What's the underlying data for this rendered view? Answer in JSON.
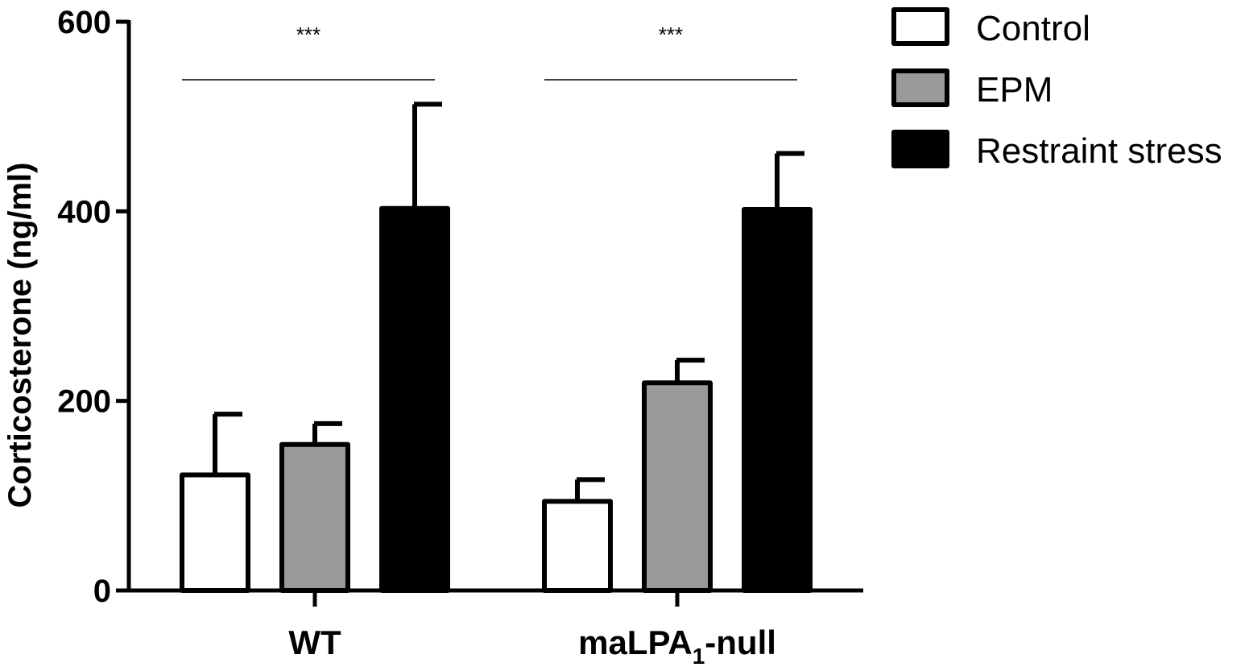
{
  "chart_data": {
    "type": "bar",
    "title": "",
    "xlabel": "",
    "ylabel": "Corticosterone (ng/ml)",
    "ylim": [
      0,
      600
    ],
    "yticks": [
      "0",
      "200",
      "400",
      "600"
    ],
    "categories": [
      {
        "main": "WT",
        "sub": ""
      },
      {
        "main": "maLPA",
        "sub": "1",
        "suffix": "-null"
      }
    ],
    "series": [
      {
        "name": "Control",
        "color": "#ffffff",
        "values": [
          122,
          94
        ],
        "errors": [
          64,
          23
        ]
      },
      {
        "name": "EPM",
        "color": "#999999",
        "values": [
          154,
          219
        ],
        "errors": [
          22,
          24
        ]
      },
      {
        "name": "Restraint stress",
        "color": "#000000",
        "values": [
          403,
          402
        ],
        "errors": [
          110,
          59
        ]
      }
    ],
    "significance": [
      {
        "group": 0,
        "label": "***"
      },
      {
        "group": 1,
        "label": "***"
      }
    ],
    "legend_position": "top-right",
    "grid": false
  }
}
